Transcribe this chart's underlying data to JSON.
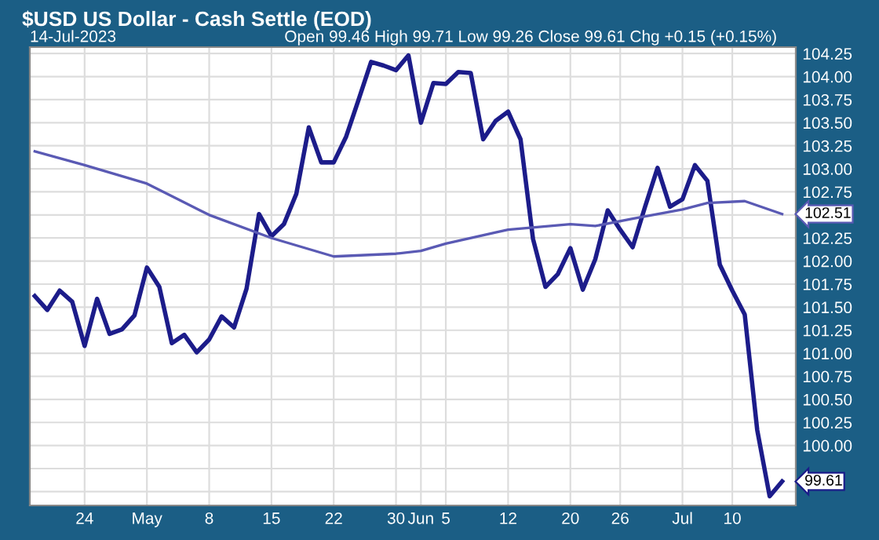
{
  "chart_data": {
    "type": "line",
    "title": "$USD US Dollar - Cash Settle (EOD)",
    "subtitle": "14-Jul-2023",
    "annotations": [
      "Open 99.46 High 99.71 Low 99.26 Close 99.61 Chg +0.15 (+0.15%)"
    ],
    "categories": [
      null,
      null,
      null,
      null,
      "24",
      null,
      null,
      null,
      null,
      "May",
      null,
      null,
      null,
      null,
      "8",
      null,
      null,
      null,
      null,
      "15",
      null,
      null,
      null,
      null,
      "22",
      null,
      null,
      null,
      null,
      "30",
      null,
      "Jun",
      null,
      "5",
      null,
      null,
      null,
      null,
      "12",
      null,
      null,
      null,
      null,
      "20",
      null,
      null,
      null,
      "26",
      null,
      null,
      null,
      null,
      "Jul",
      null,
      null,
      null,
      "10",
      null,
      null,
      null,
      null
    ],
    "series": [
      {
        "color": "#1c1c8a",
        "values": [
          101.62,
          101.47,
          101.68,
          101.56,
          101.08,
          101.59,
          101.21,
          101.26,
          101.41,
          101.93,
          101.72,
          101.11,
          101.2,
          101.01,
          101.15,
          101.4,
          101.28,
          101.7,
          102.51,
          102.27,
          102.4,
          102.73,
          103.45,
          103.07,
          103.07,
          103.35,
          103.75,
          104.16,
          104.12,
          104.07,
          104.23,
          103.5,
          103.93,
          103.92,
          104.05,
          104.04,
          103.32,
          103.52,
          103.62,
          103.32,
          102.24,
          101.72,
          101.86,
          102.14,
          101.69,
          102.02,
          102.55,
          102.34,
          102.15,
          102.59,
          103.01,
          102.59,
          102.67,
          103.04,
          102.87,
          101.96,
          101.68,
          101.42,
          100.17,
          99.45,
          99.61
        ],
        "value_labels": [
          null,
          null,
          null,
          null,
          null,
          null,
          null,
          null,
          null,
          null,
          null,
          null,
          null,
          null,
          null,
          null,
          null,
          null,
          null,
          null,
          null,
          null,
          null,
          null,
          null,
          null,
          null,
          null,
          null,
          null,
          null,
          null,
          null,
          null,
          null,
          null,
          null,
          null,
          null,
          null,
          null,
          null,
          null,
          null,
          null,
          null,
          null,
          null,
          null,
          null,
          null,
          null,
          null,
          null,
          null,
          null,
          null,
          null,
          null,
          null,
          "99.61"
        ]
      },
      {
        "color": "#5a5ab4",
        "values": [
          103.19,
          null,
          null,
          null,
          103.04,
          null,
          null,
          null,
          null,
          102.84,
          null,
          null,
          null,
          null,
          102.5,
          null,
          null,
          null,
          null,
          102.25,
          null,
          null,
          null,
          null,
          102.05,
          null,
          null,
          null,
          null,
          102.08,
          null,
          102.11,
          null,
          102.19,
          null,
          null,
          null,
          102.31,
          102.34,
          null,
          null,
          null,
          null,
          102.4,
          null,
          102.38,
          null,
          null,
          102.46,
          null,
          null,
          null,
          102.56,
          null,
          102.63,
          null,
          null,
          102.65,
          null,
          null,
          102.51
        ],
        "value_labels": [
          null,
          null,
          null,
          null,
          null,
          null,
          null,
          null,
          null,
          null,
          null,
          null,
          null,
          null,
          null,
          null,
          null,
          null,
          null,
          null,
          null,
          null,
          null,
          null,
          null,
          null,
          null,
          null,
          null,
          null,
          null,
          null,
          null,
          null,
          null,
          null,
          null,
          null,
          null,
          null,
          null,
          null,
          null,
          null,
          null,
          null,
          null,
          null,
          null,
          null,
          null,
          null,
          null,
          null,
          null,
          null,
          null,
          null,
          null,
          null,
          "102.51"
        ]
      }
    ],
    "ylim": [
      99.35,
      104.32
    ],
    "yticks": [
      {
        "value": 99.5,
        "label": null
      },
      {
        "value": 99.75,
        "label": null
      },
      {
        "value": 100.0,
        "label": "100.00"
      },
      {
        "value": 100.25,
        "label": "100.25"
      },
      {
        "value": 100.5,
        "label": "100.50"
      },
      {
        "value": 100.75,
        "label": "100.75"
      },
      {
        "value": 101.0,
        "label": "101.00"
      },
      {
        "value": 101.25,
        "label": "101.25"
      },
      {
        "value": 101.5,
        "label": "101.50"
      },
      {
        "value": 101.75,
        "label": "101.75"
      },
      {
        "value": 102.0,
        "label": "102.00"
      },
      {
        "value": 102.25,
        "label": "102.25"
      },
      {
        "value": 102.5,
        "label": null
      },
      {
        "value": 102.75,
        "label": "102.75"
      },
      {
        "value": 103.0,
        "label": "103.00"
      },
      {
        "value": 103.25,
        "label": "103.25"
      },
      {
        "value": 103.5,
        "label": "103.50"
      },
      {
        "value": 103.75,
        "label": "103.75"
      },
      {
        "value": 104.0,
        "label": "104.00"
      },
      {
        "value": 104.25,
        "label": "104.25"
      }
    ],
    "grid": true,
    "line_style": "solid"
  }
}
